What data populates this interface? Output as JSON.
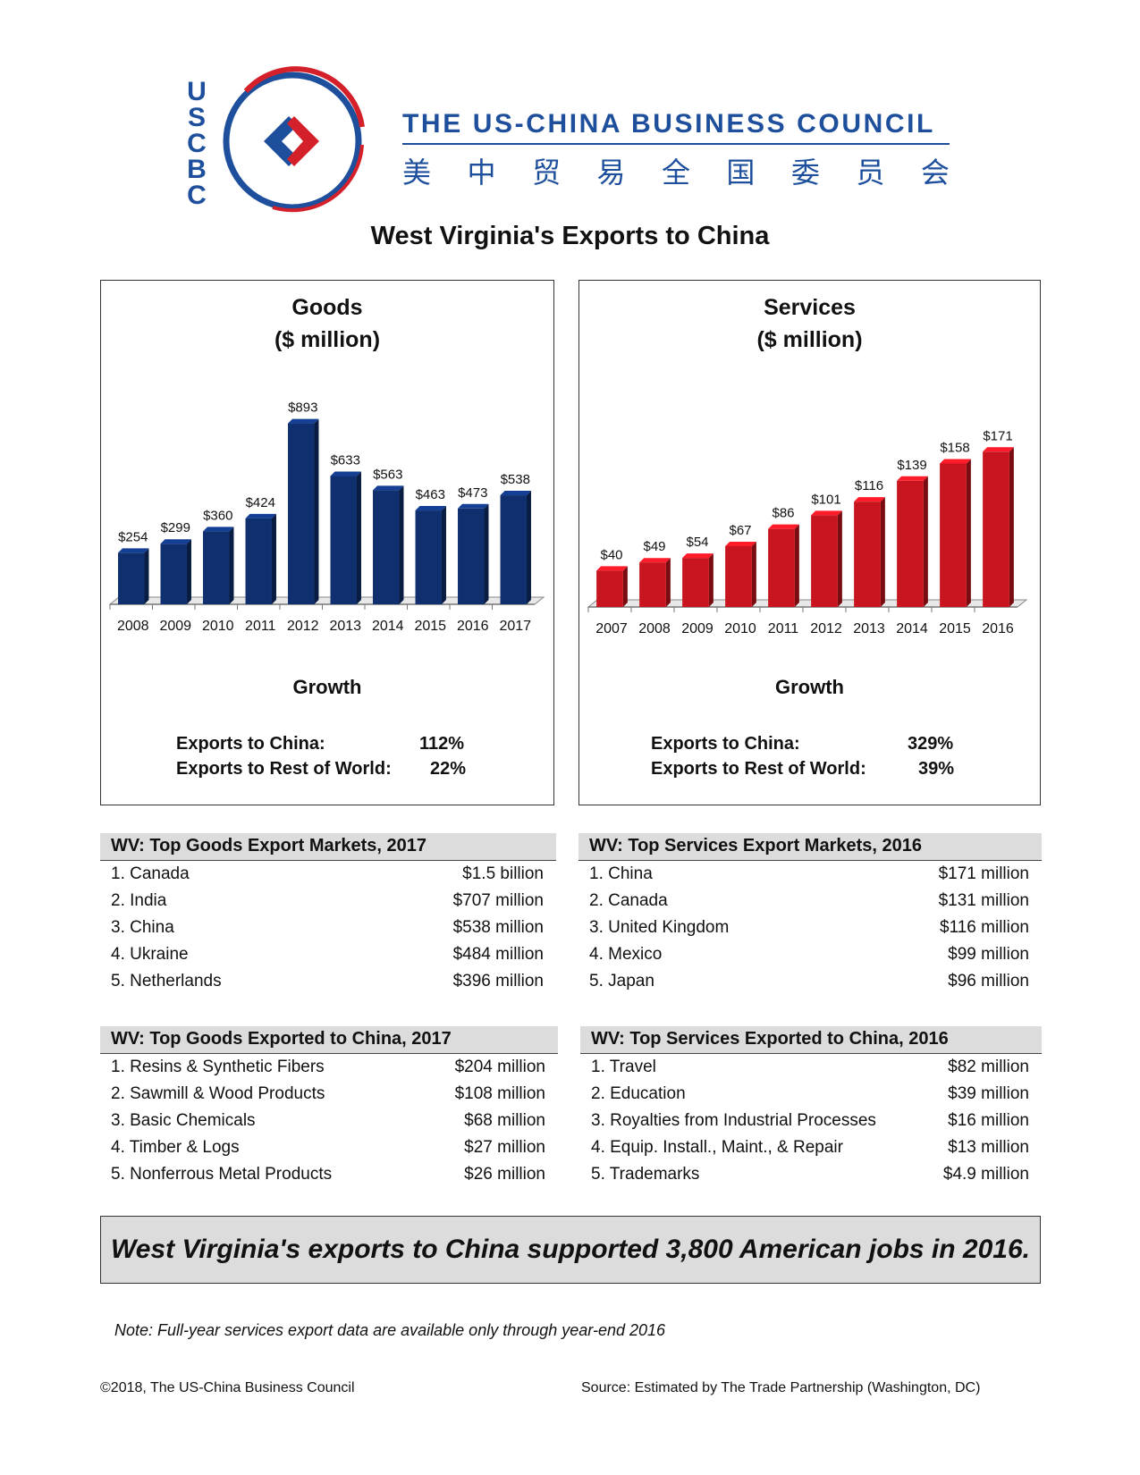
{
  "header": {
    "logo_letters": [
      "U",
      "S",
      "C",
      "B",
      "C"
    ],
    "council_name": "THE US-CHINA BUSINESS COUNCIL",
    "council_name_cn": [
      "美",
      "中",
      "贸",
      "易",
      "全",
      "国",
      "委",
      "员",
      "会"
    ],
    "colors": {
      "blue": "#1e4f9c",
      "red": "#d4202a"
    }
  },
  "title": "West Virginia's Exports to China",
  "chart_data": [
    {
      "type": "bar",
      "title": "Goods\n($ million)",
      "title_lines": [
        "Goods",
        "($ million)"
      ],
      "categories": [
        "2008",
        "2009",
        "2010",
        "2011",
        "2012",
        "2013",
        "2014",
        "2015",
        "2016",
        "2017"
      ],
      "values": [
        254,
        299,
        360,
        424,
        893,
        633,
        563,
        463,
        473,
        538
      ],
      "data_labels": [
        "$254",
        "$299",
        "$360",
        "$424",
        "$893",
        "$633",
        "$563",
        "$463",
        "$473",
        "$538"
      ],
      "ylim": [
        0,
        900
      ],
      "color": "#0f2f6e",
      "grid": false,
      "legend": "none"
    },
    {
      "type": "bar",
      "title": "Services\n($ million)",
      "title_lines": [
        "Services",
        "($ million)"
      ],
      "categories": [
        "2007",
        "2008",
        "2009",
        "2010",
        "2011",
        "2012",
        "2013",
        "2014",
        "2015",
        "2016"
      ],
      "values": [
        40,
        49,
        54,
        67,
        86,
        101,
        116,
        139,
        158,
        171
      ],
      "data_labels": [
        "$40",
        "$49",
        "$54",
        "$67",
        "$86",
        "$101",
        "$116",
        "$139",
        "$158",
        "$171"
      ],
      "ylim": [
        0,
        190
      ],
      "color": "#c8141e",
      "grid": false,
      "legend": "none"
    }
  ],
  "goods_growth": {
    "title": "Growth",
    "rows": [
      {
        "label": "Exports to China:",
        "value": "112%"
      },
      {
        "label": "Exports to Rest of World:",
        "value": "22%"
      }
    ]
  },
  "services_growth": {
    "title": "Growth",
    "rows": [
      {
        "label": "Exports to China:",
        "value": "329%"
      },
      {
        "label": "Exports to Rest of World:",
        "value": "39%"
      }
    ]
  },
  "goods_markets": {
    "title": "WV: Top Goods Export Markets, 2017",
    "rows": [
      {
        "label": "1. Canada",
        "value": "$1.5 billion"
      },
      {
        "label": "2. India",
        "value": "$707 million"
      },
      {
        "label": "3. China",
        "value": "$538 million"
      },
      {
        "label": "4. Ukraine",
        "value": "$484 million"
      },
      {
        "label": "5. Netherlands",
        "value": "$396 million"
      }
    ]
  },
  "services_markets": {
    "title": "WV: Top Services Export Markets, 2016",
    "rows": [
      {
        "label": "1. China",
        "value": "$171 million"
      },
      {
        "label": "2. Canada",
        "value": "$131 million"
      },
      {
        "label": "3. United Kingdom",
        "value": "$116 million"
      },
      {
        "label": "4. Mexico",
        "value": "$99 million"
      },
      {
        "label": "5. Japan",
        "value": "$96 million"
      }
    ]
  },
  "goods_to_china": {
    "title": "WV: Top Goods Exported to China, 2017",
    "rows": [
      {
        "label": "1. Resins & Synthetic Fibers",
        "value": "$204 million"
      },
      {
        "label": "2. Sawmill & Wood Products",
        "value": "$108 million"
      },
      {
        "label": "3. Basic Chemicals",
        "value": "$68 million"
      },
      {
        "label": "4. Timber & Logs",
        "value": "$27 million"
      },
      {
        "label": "5. Nonferrous Metal Products",
        "value": "$26 million"
      }
    ]
  },
  "services_to_china": {
    "title": "WV: Top Services Exported to China, 2016",
    "rows": [
      {
        "label": "1. Travel",
        "value": "$82 million"
      },
      {
        "label": "2. Education",
        "value": "$39 million"
      },
      {
        "label": "3. Royalties from Industrial Processes",
        "value": "$16 million"
      },
      {
        "label": "4. Equip. Install., Maint., & Repair",
        "value": "$13 million"
      },
      {
        "label": "5. Trademarks",
        "value": "$4.9 million"
      }
    ]
  },
  "banner": "West Virginia's exports to China supported 3,800 American jobs in 2016.",
  "note": "Note: Full-year services export data are available only through year-end 2016",
  "footer": {
    "copyright": "©2018, The US-China Business Council",
    "source": "Source: Estimated by The Trade Partnership (Washington, DC)"
  }
}
